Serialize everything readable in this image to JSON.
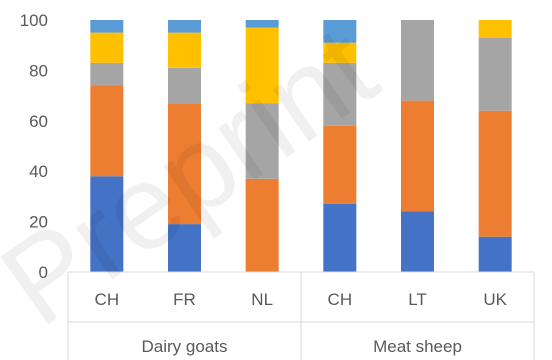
{
  "chart_data": {
    "type": "bar",
    "stacked": true,
    "title": "",
    "xlabel": "",
    "ylabel": "",
    "ylim": [
      0,
      100
    ],
    "yticks": [
      0,
      20,
      40,
      60,
      80,
      100
    ],
    "grid": false,
    "legend": "none",
    "groups": [
      {
        "label": "Dairy goats",
        "categories": [
          "CH",
          "FR",
          "NL"
        ]
      },
      {
        "label": "Meat sheep",
        "categories": [
          "CH",
          "LT",
          "UK"
        ]
      }
    ],
    "categories": [
      "CH",
      "FR",
      "NL",
      "CH",
      "LT",
      "UK"
    ],
    "series": [
      {
        "color": "#4472C4",
        "values": [
          38,
          19,
          0,
          27,
          24,
          14
        ]
      },
      {
        "color": "#ED7D31",
        "values": [
          36,
          48,
          37,
          31,
          44,
          50
        ]
      },
      {
        "color": "#A5A5A5",
        "values": [
          9,
          14,
          30,
          25,
          32,
          29
        ]
      },
      {
        "color": "#FFC000",
        "values": [
          12,
          14,
          30,
          8,
          0,
          7
        ]
      },
      {
        "color": "#5B9BD5",
        "values": [
          5,
          5,
          3,
          9,
          0,
          0
        ]
      }
    ]
  },
  "watermark": {
    "text": "Preprint"
  }
}
